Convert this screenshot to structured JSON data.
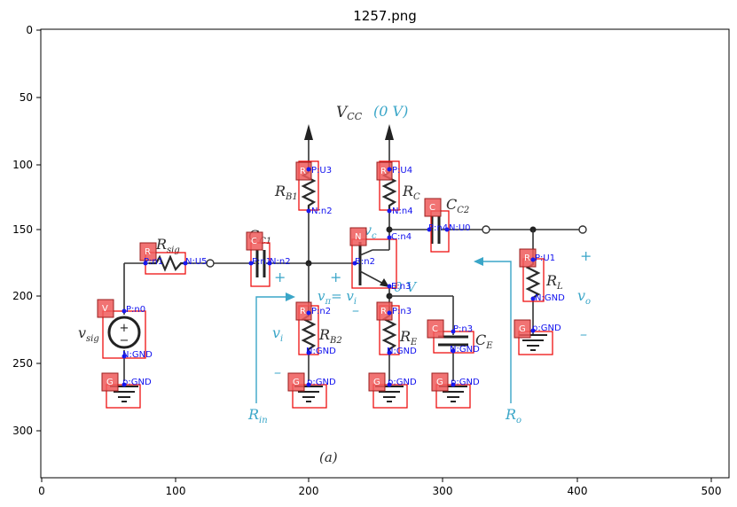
{
  "title": "1257.png",
  "axes": {
    "x_ticks": [
      "0",
      "100",
      "200",
      "300",
      "400",
      "500"
    ],
    "y_ticks": [
      "0",
      "50",
      "100",
      "150",
      "200",
      "250",
      "300"
    ]
  },
  "schematic": {
    "vcc": "V",
    "vcc_sub": "CC",
    "vcc_value": "(0 V)",
    "rb1": "R",
    "rb1_sub": "B1",
    "rc": "R",
    "rc_sub": "C",
    "cc2": "C",
    "cc2_sub": "C2",
    "rsig": "R",
    "rsig_sub": "sig",
    "cc1": "C",
    "cc1_sub": "C1",
    "vc": "v",
    "vc_sub": "c",
    "rl": "R",
    "rl_sub": "L",
    "vo": "v",
    "vo_sub": "o",
    "vpi": "v",
    "vpi_sub": "π",
    "vpi_eq": "= v",
    "vpi_eq_sub": "i",
    "zero_v": "0 V",
    "rb2": "R",
    "rb2_sub": "B2",
    "re": "R",
    "re_sub": "E",
    "ce": "C",
    "ce_sub": "E",
    "vsig": "v",
    "vsig_sub": "sig",
    "vi": "v",
    "vi_sub": "i",
    "rin": "R",
    "rin_sub": "in",
    "ro": "R",
    "ro_sub": "o",
    "caption": "(a)",
    "plus_signs": [
      "+",
      "+",
      "+"
    ],
    "minus_signs": [
      "–",
      "–",
      "–"
    ]
  },
  "annotations": {
    "tags": [
      "R",
      "R",
      "C",
      "R",
      "C",
      "N",
      "R",
      "V",
      "R",
      "R",
      "C",
      "G",
      "G",
      "G",
      "G",
      "G"
    ],
    "pins": [
      "P:U3",
      "N:n2",
      "P:U4",
      "N:n4",
      "P:n4",
      "N:U0",
      "C:n4",
      "P:n1",
      "N:U5",
      "P:n1",
      "N:n2",
      "B:n2",
      "E:n3",
      "P:U1",
      "N:GND",
      "P:n0",
      "N:GND",
      "P:n2",
      "N:GND",
      "P:n3",
      "N:GND",
      "P:n3",
      "N:GND",
      "p:GND",
      "p:GND",
      "p:GND",
      "p:GND",
      "p:GND"
    ]
  }
}
